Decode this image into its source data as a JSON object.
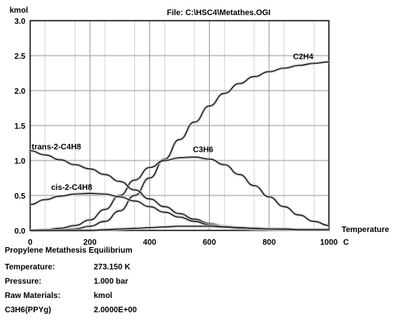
{
  "chart_data": {
    "type": "line",
    "title": "File: C:\\HSC4\\Metathes.OGI",
    "ylabel": "kmol",
    "xlabel": "Temperature",
    "xunit": "C",
    "xlim": [
      0,
      1000
    ],
    "ylim": [
      0,
      3.0
    ],
    "xticks": [
      "0",
      "200",
      "400",
      "600",
      "800",
      "1000"
    ],
    "yticks": [
      "0.0",
      "0.5",
      "1.0",
      "1.5",
      "2.0",
      "2.5",
      "3.0"
    ],
    "grid": true,
    "legend": "none",
    "x": [
      0,
      50,
      100,
      150,
      200,
      250,
      300,
      350,
      400,
      450,
      500,
      550,
      600,
      650,
      700,
      750,
      800,
      850,
      900,
      950,
      1000
    ],
    "series": [
      {
        "name": "C2H4",
        "label_pos": [
          880,
          2.45
        ],
        "values": [
          0.0,
          0.0,
          0.01,
          0.02,
          0.06,
          0.13,
          0.28,
          0.5,
          0.75,
          1.02,
          1.3,
          1.55,
          1.78,
          1.96,
          2.1,
          2.2,
          2.27,
          2.32,
          2.36,
          2.39,
          2.41
        ]
      },
      {
        "name": "C3H6",
        "label_pos": [
          545,
          1.12
        ],
        "values": [
          0.0,
          0.01,
          0.03,
          0.07,
          0.15,
          0.3,
          0.5,
          0.72,
          0.9,
          1.0,
          1.04,
          1.05,
          1.02,
          0.94,
          0.8,
          0.64,
          0.48,
          0.34,
          0.22,
          0.13,
          0.07
        ]
      },
      {
        "name": "trans-2-C4H8",
        "label_pos": [
          5,
          1.16
        ],
        "values": [
          1.14,
          1.08,
          1.01,
          0.94,
          0.88,
          0.8,
          0.7,
          0.58,
          0.45,
          0.34,
          0.24,
          0.16,
          0.1,
          0.06,
          0.04,
          0.03,
          0.02,
          0.02,
          0.01,
          0.01,
          0.01
        ]
      },
      {
        "name": "cis-2-C4H8",
        "label_pos": [
          70,
          0.58
        ],
        "values": [
          0.37,
          0.44,
          0.49,
          0.52,
          0.53,
          0.52,
          0.48,
          0.42,
          0.34,
          0.26,
          0.19,
          0.13,
          0.08,
          0.05,
          0.03,
          0.02,
          0.02,
          0.01,
          0.01,
          0.01,
          0.01
        ]
      },
      {
        "name": "",
        "values": [
          0.0,
          0.0,
          0.0,
          0.0,
          0.0,
          0.01,
          0.02,
          0.03,
          0.04,
          0.05,
          0.06,
          0.06,
          0.06,
          0.05,
          0.04,
          0.03,
          0.02,
          0.02,
          0.01,
          0.01,
          0.01
        ]
      }
    ]
  },
  "info": {
    "title": "Propylene Metathesis Equilibrium",
    "rows": [
      {
        "label": "Temperature:",
        "value": "273.150 K"
      },
      {
        "label": "Pressure:",
        "value": "1.000 bar"
      },
      {
        "label": "Raw Materials:",
        "value": "kmol"
      },
      {
        "label": "C3H6(PPYg)",
        "value": "2.0000E+00"
      }
    ]
  }
}
